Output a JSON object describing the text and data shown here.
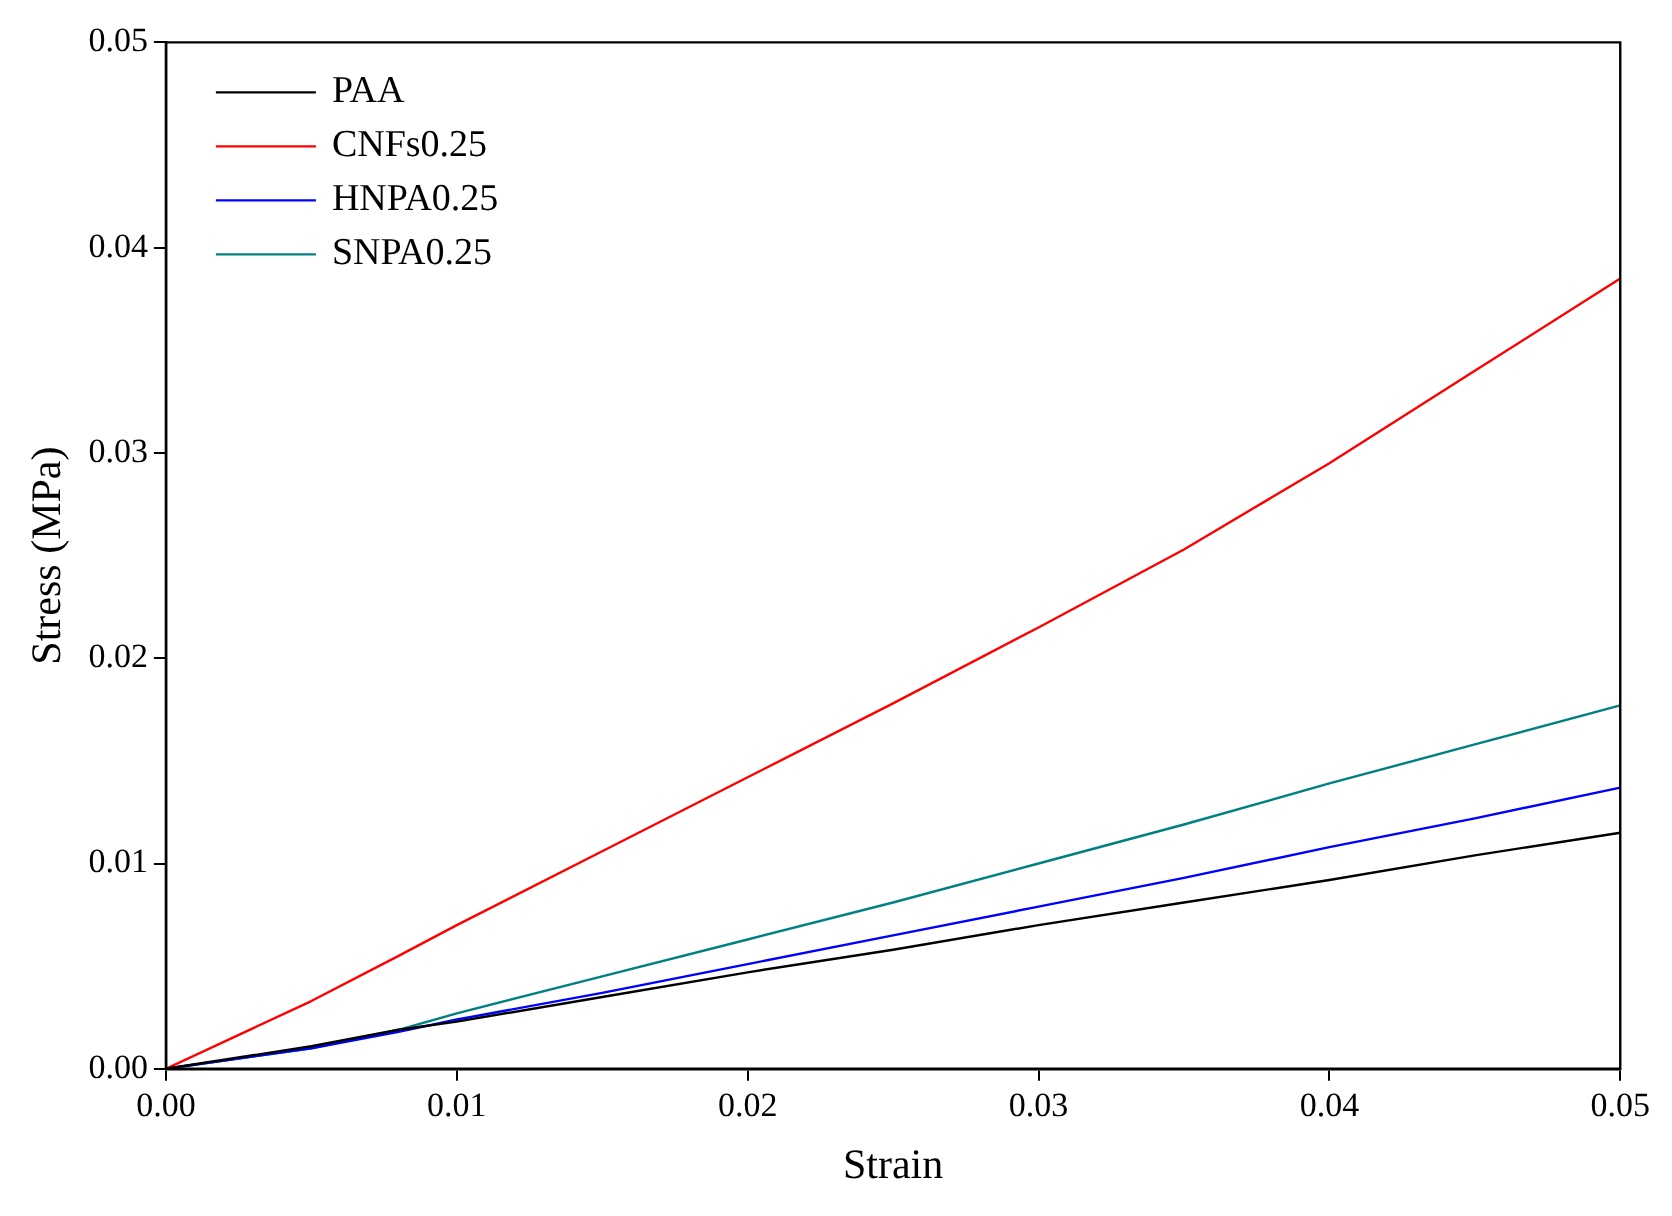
{
  "chart_data": {
    "type": "line",
    "xlabel": "Strain",
    "ylabel": "Stress (MPa)",
    "xlim": [
      0,
      0.05
    ],
    "ylim": [
      0,
      0.05
    ],
    "xticks": [
      {
        "value": 0,
        "label": "0.00"
      },
      0.01,
      0.02,
      0.03,
      0.04,
      0.05
    ],
    "yticks": [
      {
        "value": 0,
        "label": "0.00"
      },
      0.01,
      0.02,
      0.03,
      0.04,
      0.05
    ],
    "grid": false,
    "legend": "top left",
    "marker": "none",
    "line_style": "solid",
    "x": [
      0,
      0.005,
      0.008,
      0.01,
      0.015,
      0.02,
      0.025,
      0.03,
      0.035,
      0.04,
      0.045,
      0.05
    ],
    "series": [
      {
        "name": "PAA",
        "color": "#000000",
        "values": [
          0,
          0.0011,
          0.0019,
          0.0023,
          0.0035,
          0.0047,
          0.0058,
          0.007,
          0.0081,
          0.0092,
          0.0104,
          0.0115
        ]
      },
      {
        "name": "CNFs0.25",
        "color": "#ff0000",
        "values": [
          0,
          0.0033,
          0.0055,
          0.007,
          0.0106,
          0.0142,
          0.0178,
          0.0215,
          0.0253,
          0.0295,
          0.034,
          0.0385
        ]
      },
      {
        "name": "HNPA0.25",
        "color": "#0000ff",
        "values": [
          0,
          0.001,
          0.0018,
          0.0024,
          0.0037,
          0.0051,
          0.0065,
          0.0079,
          0.0093,
          0.0108,
          0.0122,
          0.0137
        ]
      },
      {
        "name": "SNPA0.25",
        "color": "#008080",
        "values": [
          0,
          0.001,
          0.0019,
          0.0027,
          0.0045,
          0.0063,
          0.0081,
          0.01,
          0.0119,
          0.0139,
          0.0158,
          0.0177
        ]
      }
    ]
  }
}
